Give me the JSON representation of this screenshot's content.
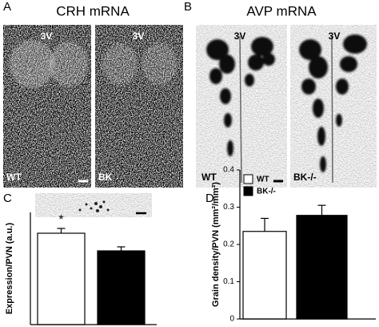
{
  "panels": [
    {
      "label": "A",
      "title": "CRH mRNA",
      "images": [
        {
          "top": "3V",
          "bottom": "WT"
        },
        {
          "top": "3V",
          "bottom": "BK"
        }
      ]
    },
    {
      "label": "B",
      "title": "AVP mRNA",
      "images": [
        {
          "top": "3V",
          "bottom": "WT"
        },
        {
          "top": "3V",
          "bottom": "BK-/-"
        }
      ]
    },
    {
      "label": "C"
    },
    {
      "label": "D"
    }
  ],
  "chart_data": [
    {
      "type": "bar",
      "ylabel": "Expression/PVN (a.u.)",
      "ylim": [
        0,
        7
      ],
      "values": [
        5.7,
        4.6
      ],
      "errors": [
        0.3,
        0.25
      ],
      "colors": [
        "#ffffff",
        "#000000"
      ],
      "annotations": [
        "*",
        null
      ]
    },
    {
      "type": "bar",
      "ylabel": "Grain density/PVN (mm²/mm²)",
      "ylim": [
        0,
        0.4
      ],
      "yticks": [
        0,
        0.1,
        0.2,
        0.3,
        0.4
      ],
      "legend": "upper left",
      "series": [
        {
          "name": "WT",
          "color": "#ffffff",
          "values": [
            0.235
          ],
          "errors": [
            0.035
          ]
        },
        {
          "name": "BK-/-",
          "color": "#000000",
          "values": [
            0.278
          ],
          "errors": [
            0.027
          ]
        }
      ]
    }
  ]
}
